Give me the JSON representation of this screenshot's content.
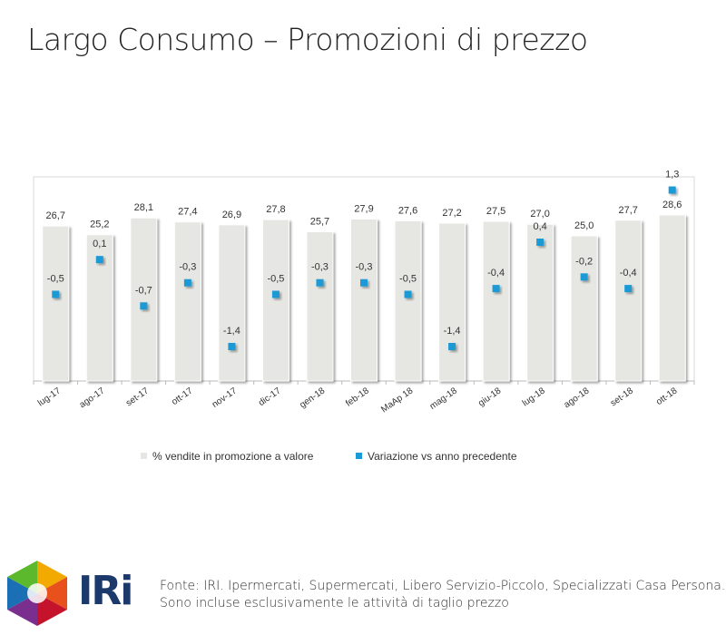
{
  "title": "Largo Consumo – Promozioni di prezzo",
  "chart_data": {
    "type": "bar",
    "categories": [
      "lug-17",
      "ago-17",
      "set-17",
      "ott-17",
      "nov-17",
      "dic-17",
      "gen-18",
      "feb-18",
      "MaAp 18",
      "mag-18",
      "giu-18",
      "lug-18",
      "ago-18",
      "set-18",
      "ott-18"
    ],
    "series": [
      {
        "name": "% vendite in promozione a valore",
        "type": "bar",
        "values": [
          26.7,
          25.2,
          28.1,
          27.4,
          26.9,
          27.8,
          25.7,
          27.9,
          27.6,
          27.2,
          27.5,
          27.0,
          25.0,
          27.7,
          28.6
        ],
        "labels": [
          "26,7",
          "25,2",
          "28,1",
          "27,4",
          "26,9",
          "27,8",
          "25,7",
          "27,9",
          "27,6",
          "27,2",
          "27,5",
          "27,0",
          "25,0",
          "27,7",
          "28,6"
        ],
        "color": "#e6e6e2"
      },
      {
        "name": "Variazione vs anno precedente",
        "type": "scatter",
        "values": [
          -0.5,
          0.1,
          -0.7,
          -0.3,
          -1.4,
          -0.5,
          -0.3,
          -0.3,
          -0.5,
          -1.4,
          -0.4,
          0.4,
          -0.2,
          -0.4,
          1.3
        ],
        "labels": [
          "-0,5",
          "0,1",
          "-0,7",
          "-0,3",
          "-1,4",
          "-0,5",
          "-0,3",
          "-0,3",
          "-0,5",
          "-1,4",
          "-0,4",
          "0,4",
          "-0,2",
          "-0,4",
          "1,3"
        ],
        "color": "#1a9ad6"
      }
    ],
    "legend_position": "bottom",
    "grid": false
  },
  "legend": {
    "bars_label": "% vendite in promozione a valore",
    "markers_label": "Variazione vs anno precedente"
  },
  "footer": {
    "line1": "Fonte: IRI. Ipermercati, Supermercati, Libero Servizio-Piccolo, Specializzati Casa Persona.",
    "line2": "Sono incluse esclusivamente le attività di taglio prezzo"
  },
  "logo": {
    "text": "IRi"
  }
}
